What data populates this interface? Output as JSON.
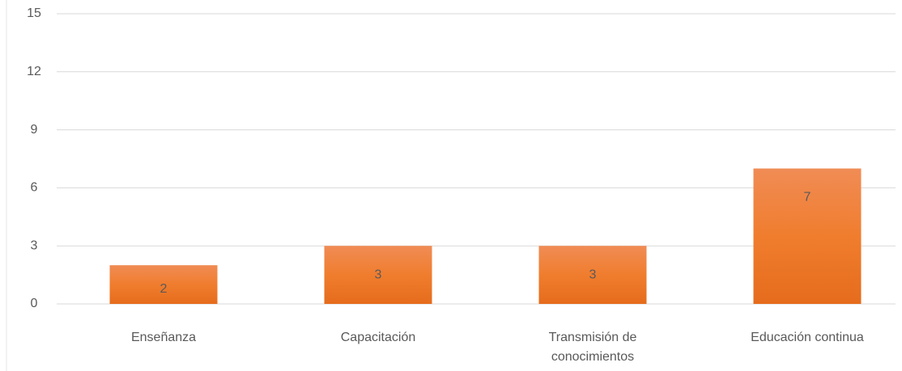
{
  "chart_data": {
    "type": "bar",
    "categories": [
      "Enseñanza",
      "Capacitación",
      "Transmisión de conocimientos",
      "Educación continua"
    ],
    "values": [
      2,
      3,
      3,
      7
    ],
    "color": "#ee7d2f",
    "ylim": [
      0,
      15
    ],
    "yticks": [
      0,
      3,
      6,
      9,
      12,
      15
    ],
    "grid": true
  }
}
